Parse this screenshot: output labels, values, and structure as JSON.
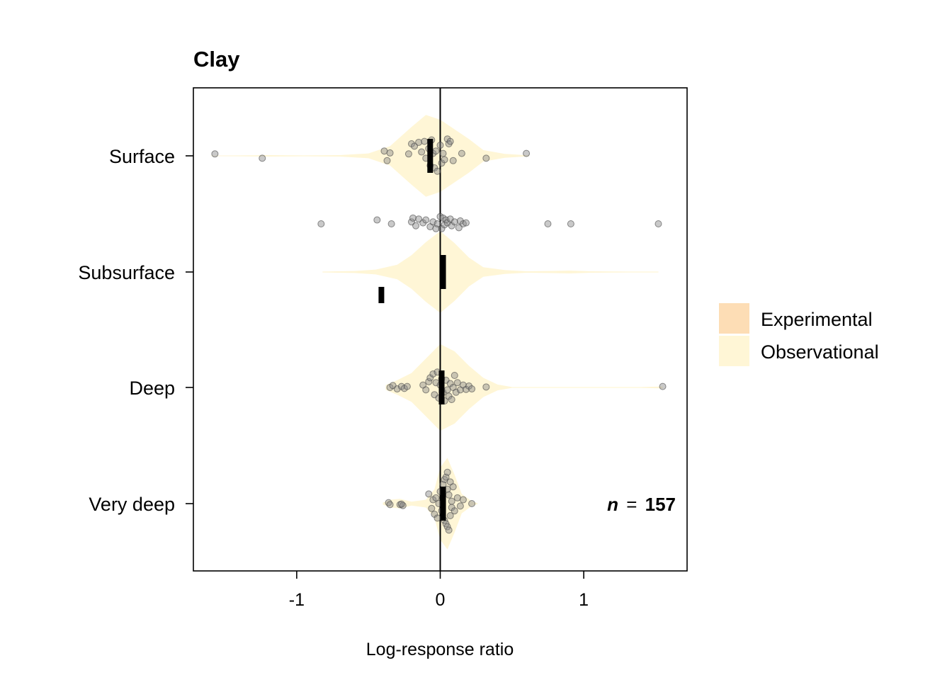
{
  "chart_data": {
    "type": "scatter",
    "title": "Clay",
    "xlabel": "Log-response ratio",
    "ylabel": "",
    "xlim": [
      -1.72,
      1.72
    ],
    "x_ticks": [
      -1,
      0,
      1
    ],
    "x_tick_labels": [
      "-1",
      "0",
      "1"
    ],
    "categories": [
      "Surface",
      "Subsurface",
      "Deep",
      "Very deep"
    ],
    "zero_line": 0,
    "annotation": {
      "prefix": "n",
      "operator": "=",
      "value": "157"
    },
    "legend": {
      "placement": "right",
      "entries": [
        {
          "label": "Experimental",
          "color": "#FDDDB5"
        },
        {
          "label": "Observational",
          "color": "#FFF6D6"
        }
      ]
    },
    "colors": {
      "point_fill": "#888888",
      "point_stroke": "#444444",
      "mean_bar": "#000000"
    },
    "series": [
      {
        "name": "Surface",
        "violin": [
          [
            -1.6,
            0.005
          ],
          [
            -1.4,
            0.01
          ],
          [
            -1.2,
            0.015
          ],
          [
            -0.95,
            0.01
          ],
          [
            -0.7,
            0.015
          ],
          [
            -0.5,
            0.05
          ],
          [
            -0.35,
            0.2
          ],
          [
            -0.2,
            0.6
          ],
          [
            -0.1,
            0.85
          ],
          [
            0,
            0.75
          ],
          [
            0.1,
            0.55
          ],
          [
            0.2,
            0.35
          ],
          [
            0.3,
            0.12
          ],
          [
            0.45,
            0.04
          ],
          [
            0.62,
            0.01
          ]
        ],
        "points": [
          [
            -1.57,
            0.04
          ],
          [
            -1.24,
            -0.05
          ],
          [
            -0.39,
            0.1
          ],
          [
            -0.37,
            -0.1
          ],
          [
            -0.35,
            0.06
          ],
          [
            -0.22,
            0.04
          ],
          [
            -0.2,
            0.25
          ],
          [
            -0.18,
            0.2
          ],
          [
            -0.15,
            0.28
          ],
          [
            -0.13,
            0.08
          ],
          [
            -0.11,
            0.3
          ],
          [
            -0.1,
            -0.05
          ],
          [
            -0.08,
            0.15
          ],
          [
            -0.07,
            -0.2
          ],
          [
            -0.06,
            0.33
          ],
          [
            -0.05,
            0.05
          ],
          [
            -0.04,
            -0.25
          ],
          [
            -0.03,
            0.1
          ],
          [
            -0.02,
            -0.32
          ],
          [
            0,
            0.22
          ],
          [
            0.01,
            -0.15
          ],
          [
            0.02,
            0.05
          ],
          [
            0.03,
            -0.08
          ],
          [
            0.05,
            0.35
          ],
          [
            0.06,
            0.25
          ],
          [
            0.07,
            0.3
          ],
          [
            0.09,
            -0.1
          ],
          [
            0.15,
            0.05
          ],
          [
            0.32,
            -0.05
          ],
          [
            0.6,
            0.05
          ]
        ],
        "mean": -0.07
      },
      {
        "name": "Subsurface",
        "violin": [
          [
            -0.82,
            0.01
          ],
          [
            -0.6,
            0.02
          ],
          [
            -0.45,
            0.05
          ],
          [
            -0.3,
            0.15
          ],
          [
            -0.2,
            0.35
          ],
          [
            -0.1,
            0.62
          ],
          [
            0,
            0.85
          ],
          [
            0.1,
            0.6
          ],
          [
            0.2,
            0.3
          ],
          [
            0.3,
            0.1
          ],
          [
            0.45,
            0.04
          ],
          [
            0.6,
            0.015
          ],
          [
            0.75,
            0.02
          ],
          [
            0.9,
            0.03
          ],
          [
            1.05,
            0.015
          ],
          [
            1.3,
            0.01
          ],
          [
            1.52,
            0.01
          ]
        ],
        "points": [
          [
            -0.83,
            1.0
          ],
          [
            -0.44,
            1.08
          ],
          [
            -0.34,
            1.0
          ],
          [
            -0.2,
            1.04
          ],
          [
            -0.19,
            1.12
          ],
          [
            -0.17,
            0.96
          ],
          [
            -0.15,
            1.1
          ],
          [
            -0.12,
            1.02
          ],
          [
            -0.1,
            1.08
          ],
          [
            -0.07,
            0.94
          ],
          [
            -0.05,
            1.04
          ],
          [
            -0.03,
            0.9
          ],
          [
            -0.02,
            1.0
          ],
          [
            0.0,
            1.15
          ],
          [
            0.01,
            0.9
          ],
          [
            0.02,
            1.12
          ],
          [
            0.03,
            0.98
          ],
          [
            0.04,
            1.08
          ],
          [
            0.05,
            1.02
          ],
          [
            0.07,
            1.1
          ],
          [
            0.08,
            0.96
          ],
          [
            0.1,
            1.04
          ],
          [
            0.13,
            0.92
          ],
          [
            0.14,
            1.06
          ],
          [
            0.16,
            1.0
          ],
          [
            0.18,
            1.02
          ],
          [
            0.75,
            1.0
          ],
          [
            0.91,
            1.0
          ],
          [
            1.52,
            1.0
          ]
        ],
        "mean": 0.02,
        "mean_secondary": -0.41
      },
      {
        "name": "Deep",
        "violin": [
          [
            -0.38,
            0.05
          ],
          [
            -0.3,
            0.15
          ],
          [
            -0.2,
            0.3
          ],
          [
            -0.1,
            0.6
          ],
          [
            0,
            0.9
          ],
          [
            0.1,
            0.75
          ],
          [
            0.2,
            0.45
          ],
          [
            0.3,
            0.2
          ],
          [
            0.4,
            0.06
          ],
          [
            0.5,
            0.01
          ],
          [
            1.4,
            0.01
          ],
          [
            1.55,
            0.02
          ]
        ],
        "points": [
          [
            -0.35,
            0.0
          ],
          [
            -0.33,
            0.04
          ],
          [
            -0.3,
            -0.03
          ],
          [
            -0.27,
            0.02
          ],
          [
            -0.25,
            -0.02
          ],
          [
            -0.23,
            0.02
          ],
          [
            -0.12,
            0.05
          ],
          [
            -0.1,
            -0.05
          ],
          [
            -0.08,
            0.12
          ],
          [
            -0.07,
            0.2
          ],
          [
            -0.05,
            0.28
          ],
          [
            -0.04,
            -0.15
          ],
          [
            -0.03,
            0.1
          ],
          [
            -0.02,
            0.32
          ],
          [
            -0.01,
            -0.22
          ],
          [
            0.0,
            0.05
          ],
          [
            0.01,
            0.18
          ],
          [
            0.02,
            -0.1
          ],
          [
            0.03,
            -0.28
          ],
          [
            0.04,
            0.15
          ],
          [
            0.05,
            -0.05
          ],
          [
            0.06,
            -0.18
          ],
          [
            0.07,
            0.08
          ],
          [
            0.08,
            -0.25
          ],
          [
            0.09,
            0.0
          ],
          [
            0.1,
            0.25
          ],
          [
            0.11,
            -0.1
          ],
          [
            0.12,
            0.1
          ],
          [
            0.14,
            -0.05
          ],
          [
            0.16,
            0.05
          ],
          [
            0.18,
            -0.04
          ],
          [
            0.2,
            0.03
          ],
          [
            0.22,
            -0.03
          ],
          [
            0.32,
            0.01
          ],
          [
            1.55,
            0.02
          ]
        ],
        "mean": 0.01
      },
      {
        "name": "Very deep",
        "violin": [
          [
            -0.4,
            0.02
          ],
          [
            -0.35,
            0.08
          ],
          [
            -0.28,
            0.1
          ],
          [
            -0.2,
            0.04
          ],
          [
            -0.1,
            0.08
          ],
          [
            -0.04,
            0.3
          ],
          [
            0,
            0.75
          ],
          [
            0.05,
            0.95
          ],
          [
            0.1,
            0.6
          ],
          [
            0.15,
            0.2
          ],
          [
            0.22,
            0.05
          ],
          [
            0.26,
            0.01
          ]
        ],
        "points": [
          [
            -0.36,
            0.02
          ],
          [
            -0.35,
            -0.02
          ],
          [
            -0.28,
            -0.02
          ],
          [
            -0.26,
            -0.04
          ],
          [
            -0.27,
            -0.01
          ],
          [
            -0.08,
            0.2
          ],
          [
            -0.06,
            -0.1
          ],
          [
            -0.05,
            0.08
          ],
          [
            -0.04,
            -0.22
          ],
          [
            -0.03,
            0.12
          ],
          [
            -0.02,
            -0.3
          ],
          [
            -0.01,
            0.0
          ],
          [
            0.0,
            0.25
          ],
          [
            0.01,
            -0.15
          ],
          [
            0.02,
            0.4
          ],
          [
            0.03,
            -0.35
          ],
          [
            0.03,
            0.5
          ],
          [
            0.04,
            -0.42
          ],
          [
            0.04,
            0.55
          ],
          [
            0.05,
            0.3
          ],
          [
            0.05,
            -0.48
          ],
          [
            0.05,
            0.65
          ],
          [
            0.06,
            -0.55
          ],
          [
            0.06,
            0.18
          ],
          [
            0.07,
            -0.25
          ],
          [
            0.07,
            0.45
          ],
          [
            0.08,
            0.05
          ],
          [
            0.08,
            -0.08
          ],
          [
            0.09,
            0.35
          ],
          [
            0.1,
            -0.15
          ],
          [
            0.12,
            0.12
          ],
          [
            0.14,
            -0.05
          ],
          [
            0.16,
            0.08
          ],
          [
            0.22,
            0.0
          ]
        ],
        "mean": 0.02
      }
    ]
  }
}
